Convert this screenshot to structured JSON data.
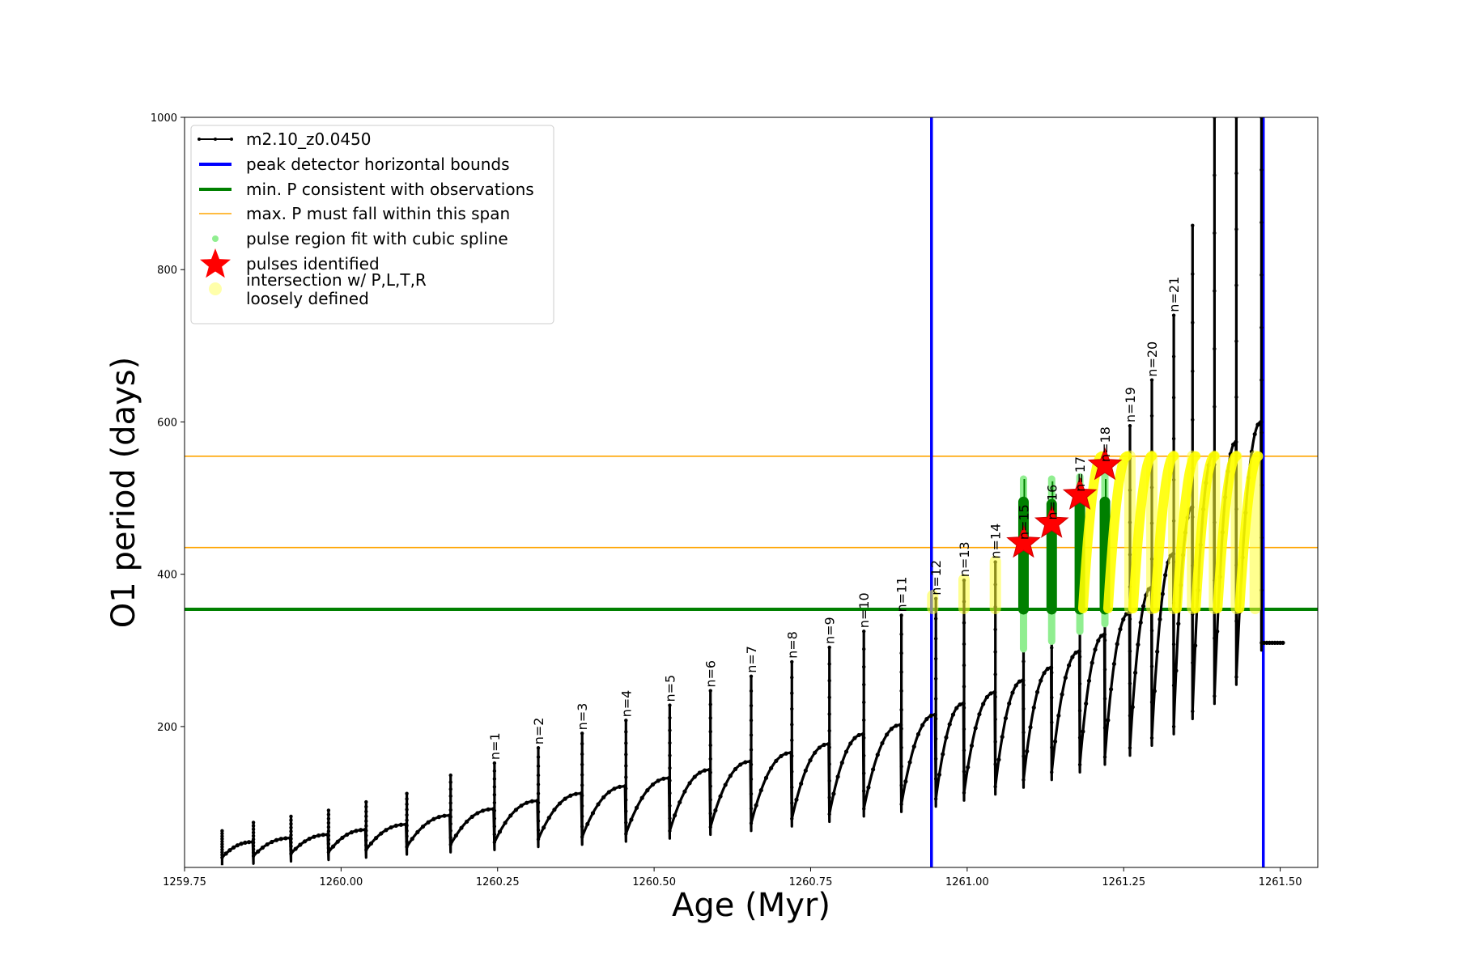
{
  "chart_data": {
    "type": "line",
    "xlabel": "Age (Myr)",
    "ylabel": "O1 period (days)",
    "xlim": [
      1259.75,
      1261.56
    ],
    "ylim": [
      15,
      1000
    ],
    "xticks": [
      {
        "value": 1259.75,
        "label": "1259.75"
      },
      {
        "value": 1260.0,
        "label": "1260.00"
      },
      {
        "value": 1260.25,
        "label": "1260.25"
      },
      {
        "value": 1260.5,
        "label": "1260.50"
      },
      {
        "value": 1260.75,
        "label": "1260.75"
      },
      {
        "value": 1261.0,
        "label": "1261.00"
      },
      {
        "value": 1261.25,
        "label": "1261.25"
      },
      {
        "value": 1261.5,
        "label": "1261.50"
      }
    ],
    "yticks": [
      {
        "value": 200,
        "label": "200"
      },
      {
        "value": 400,
        "label": "400"
      },
      {
        "value": 600,
        "label": "600"
      },
      {
        "value": 800,
        "label": "800"
      },
      {
        "value": 1000,
        "label": "1000"
      }
    ],
    "legend_position": "top-left",
    "legend": [
      {
        "name": "m2.10_z0.0450",
        "marker": "line-dots",
        "color": "#000000"
      },
      {
        "name": "peak detector horizontal bounds",
        "marker": "line",
        "color": "#0000ff"
      },
      {
        "name": "min. P consistent with observations",
        "marker": "line",
        "color": "#008000"
      },
      {
        "name": "max. P must fall within this span",
        "marker": "thin-line",
        "color": "#ffa500"
      },
      {
        "name": "pulse region fit with cubic spline",
        "marker": "dot",
        "color": "#90ee90"
      },
      {
        "name": "pulses identified",
        "marker": "star",
        "color": "#ff0000"
      },
      {
        "name": "intersection w/ P,L,T,R\nloosely defined",
        "marker": "dot",
        "color": "#ffffaa"
      }
    ],
    "vertical_lines": [
      {
        "x": 1260.943,
        "color": "#0000ff"
      },
      {
        "x": 1261.473,
        "color": "#0000ff"
      }
    ],
    "horizontal_lines": [
      {
        "y": 354,
        "color": "#008000"
      },
      {
        "y": 435,
        "color": "#ffa500"
      },
      {
        "y": 555,
        "color": "#ffa500"
      }
    ],
    "pulses": [
      {
        "x": 1259.81,
        "min": 28,
        "peak": 63
      },
      {
        "x": 1259.86,
        "min": 30,
        "peak": 74
      },
      {
        "x": 1259.92,
        "min": 33,
        "peak": 82
      },
      {
        "x": 1259.98,
        "min": 35,
        "peak": 90
      },
      {
        "x": 1260.04,
        "min": 38,
        "peak": 101
      },
      {
        "x": 1260.105,
        "min": 42,
        "peak": 112
      },
      {
        "x": 1260.175,
        "min": 45,
        "peak": 136
      },
      {
        "x": 1260.245,
        "min": 48,
        "peak": 152,
        "label": "n=1"
      },
      {
        "x": 1260.315,
        "min": 52,
        "peak": 172,
        "label": "n=2"
      },
      {
        "x": 1260.385,
        "min": 55,
        "peak": 191,
        "label": "n=3"
      },
      {
        "x": 1260.455,
        "min": 59,
        "peak": 208,
        "label": "n=4"
      },
      {
        "x": 1260.525,
        "min": 63,
        "peak": 228,
        "label": "n=5"
      },
      {
        "x": 1260.59,
        "min": 68,
        "peak": 247,
        "label": "n=6"
      },
      {
        "x": 1260.655,
        "min": 73,
        "peak": 266,
        "label": "n=7"
      },
      {
        "x": 1260.72,
        "min": 79,
        "peak": 285,
        "label": "n=8"
      },
      {
        "x": 1260.78,
        "min": 85,
        "peak": 304,
        "label": "n=9"
      },
      {
        "x": 1260.835,
        "min": 92,
        "peak": 325,
        "label": "n=10"
      },
      {
        "x": 1260.895,
        "min": 98,
        "peak": 346,
        "label": "n=11"
      },
      {
        "x": 1260.95,
        "min": 105,
        "peak": 368,
        "label": "n=12"
      },
      {
        "x": 1260.995,
        "min": 113,
        "peak": 392,
        "label": "n=13"
      },
      {
        "x": 1261.045,
        "min": 121,
        "peak": 416,
        "label": "n=14"
      },
      {
        "x": 1261.09,
        "min": 130,
        "peak": 441,
        "label": "n=15"
      },
      {
        "x": 1261.135,
        "min": 140,
        "peak": 467,
        "label": "n=16"
      },
      {
        "x": 1261.18,
        "min": 150,
        "peak": 504,
        "label": "n=17"
      },
      {
        "x": 1261.22,
        "min": 160,
        "peak": 543,
        "label": "n=18"
      },
      {
        "x": 1261.26,
        "min": 172,
        "peak": 595,
        "label": "n=19"
      },
      {
        "x": 1261.295,
        "min": 185,
        "peak": 655,
        "label": "n=20"
      },
      {
        "x": 1261.33,
        "min": 200,
        "peak": 740,
        "label": "n=21"
      },
      {
        "x": 1261.36,
        "min": 220,
        "peak": 858
      },
      {
        "x": 1261.395,
        "min": 240,
        "peak": 1000
      },
      {
        "x": 1261.43,
        "min": 265,
        "peak": 1000
      },
      {
        "x": 1261.47,
        "min": 310,
        "peak": 1000
      }
    ],
    "pulses_identified": [
      {
        "x": 1261.09,
        "y": 441
      },
      {
        "x": 1261.135,
        "y": 467
      },
      {
        "x": 1261.18,
        "y": 504
      },
      {
        "x": 1261.22,
        "y": 543
      }
    ],
    "green_spans": [
      {
        "x": 1261.09,
        "y0": 354,
        "y1": 495
      },
      {
        "x": 1261.135,
        "y0": 354,
        "y1": 492
      },
      {
        "x": 1261.18,
        "y0": 354,
        "y1": 496
      },
      {
        "x": 1261.22,
        "y0": 354,
        "y1": 495
      }
    ],
    "spline_spans": [
      {
        "x": 1261.09,
        "y0": 302,
        "y1": 525
      },
      {
        "x": 1261.135,
        "y0": 312,
        "y1": 525
      },
      {
        "x": 1261.18,
        "y0": 325,
        "y1": 528
      },
      {
        "x": 1261.22,
        "y0": 335,
        "y1": 530
      }
    ],
    "yellow_spans": [
      {
        "x": 1260.945,
        "y0": 355,
        "y1": 372
      },
      {
        "x": 1260.995,
        "y0": 355,
        "y1": 393
      },
      {
        "x": 1261.045,
        "y0": 355,
        "y1": 417
      },
      {
        "x": 1261.26,
        "y0": 355,
        "y1": 555
      },
      {
        "x": 1261.295,
        "y0": 355,
        "y1": 555
      },
      {
        "x": 1261.33,
        "y0": 355,
        "y1": 555
      },
      {
        "x": 1261.36,
        "y0": 355,
        "y1": 555
      },
      {
        "x": 1261.395,
        "y0": 355,
        "y1": 555
      },
      {
        "x": 1261.43,
        "y0": 355,
        "y1": 555
      },
      {
        "x": 1261.46,
        "y0": 355,
        "y1": 555
      }
    ]
  }
}
